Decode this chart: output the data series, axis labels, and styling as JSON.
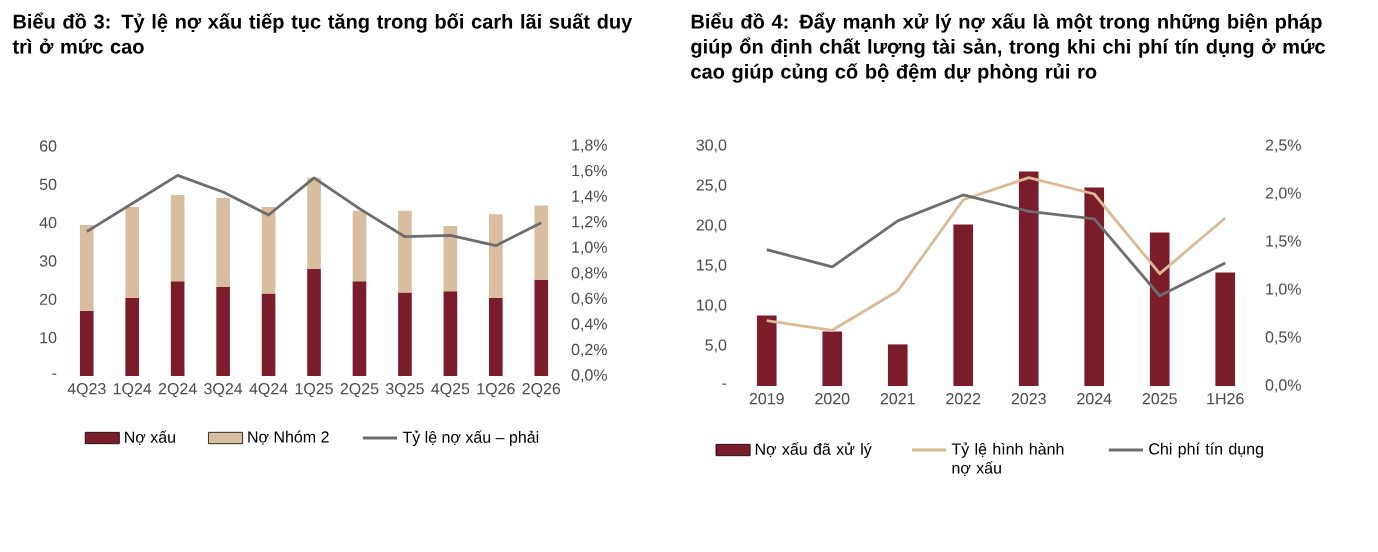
{
  "chart_data": [
    {
      "type": "bar",
      "title": "Biểu đồ 3: Tỷ lệ nợ xấu tiếp tục tăng trong bối carh lãi suất duy trì ở mức cao",
      "stacked": true,
      "legend": "bottom",
      "categories": [
        "4Q23",
        "1Q24",
        "2Q24",
        "3Q24",
        "4Q24",
        "1Q25",
        "2Q25",
        "3Q25",
        "4Q25",
        "1Q26",
        "2Q26"
      ],
      "ylim": [
        0,
        60
      ],
      "yticks": [
        {
          "value": 0,
          "label": "-"
        },
        10,
        20,
        30,
        40,
        50,
        60
      ],
      "y2lim": [
        0,
        1.8
      ],
      "y2ticks": [
        {
          "value": 0,
          "label": "0,0%"
        },
        {
          "value": 0.2,
          "label": "0,2%"
        },
        {
          "value": 0.4,
          "label": "0,4%"
        },
        {
          "value": 0.6,
          "label": "0,6%"
        },
        {
          "value": 0.8,
          "label": "0,8%"
        },
        {
          "value": 1.0,
          "label": "1,0%"
        },
        {
          "value": 1.2,
          "label": "1,2%"
        },
        {
          "value": 1.4,
          "label": "1,4%"
        },
        {
          "value": 1.6,
          "label": "1,6%"
        },
        {
          "value": 1.8,
          "label": "1,8%"
        }
      ],
      "series": [
        {
          "name": "Nợ xấu",
          "color": "#7b1c2a",
          "values": [
            17.0,
            20.4,
            24.7,
            23.2,
            21.5,
            28.0,
            24.7,
            21.8,
            22.1,
            20.4,
            25.1
          ]
        },
        {
          "name": "Nợ Nhóm 2",
          "color": "#d8bd9f",
          "values": [
            22.4,
            23.7,
            22.5,
            23.2,
            22.6,
            23.7,
            18.4,
            21.3,
            17.0,
            21.8,
            19.4
          ]
        },
        {
          "name": "Tỷ lệ nợ xấu – phải",
          "type": "line",
          "axis": "y2",
          "color": "#6d6d6d",
          "values": [
            1.13,
            1.35,
            1.57,
            1.44,
            1.26,
            1.55,
            1.31,
            1.09,
            1.1,
            1.02,
            1.2
          ]
        }
      ]
    },
    {
      "type": "bar",
      "title": "Biểu đồ 4: Đẩy mạnh xử lý nợ xấu là một trong những biện pháp giúp ổn định chất lượng tài sản, trong khi chi phí tín dụng ở mức cao giúp củng cố bộ đệm dự phòng rủi ro",
      "legend": "bottom",
      "categories": [
        "2019",
        "2020",
        "2021",
        "2022",
        "2023",
        "2024",
        "2025",
        "1H26"
      ],
      "ylim": [
        0,
        30
      ],
      "yticks": [
        {
          "value": 0,
          "label": "-"
        },
        {
          "value": 5,
          "label": "5,0"
        },
        {
          "value": 10,
          "label": "10,0"
        },
        {
          "value": 15,
          "label": "15,0"
        },
        {
          "value": 20,
          "label": "20,0"
        },
        {
          "value": 25,
          "label": "25,0"
        },
        {
          "value": 30,
          "label": "30,0"
        }
      ],
      "y2lim": [
        0,
        2.5
      ],
      "y2ticks": [
        {
          "value": 0,
          "label": "0,0%"
        },
        {
          "value": 0.5,
          "label": "0,5%"
        },
        {
          "value": 1.0,
          "label": "1,0%"
        },
        {
          "value": 1.5,
          "label": "1,5%"
        },
        {
          "value": 2.0,
          "label": "2,0%"
        },
        {
          "value": 2.5,
          "label": "2,5%"
        }
      ],
      "series": [
        {
          "name": "Nợ xấu đã xử lý",
          "color": "#7b1c2a",
          "values": [
            8.8,
            6.8,
            5.2,
            20.2,
            26.8,
            24.8,
            19.2,
            14.2
          ]
        },
        {
          "name": "Tỷ lệ hình hành nợ xấu",
          "type": "line",
          "axis": "y2",
          "color": "#dcb995",
          "values": [
            0.68,
            0.58,
            0.99,
            1.94,
            2.17,
            2.0,
            1.17,
            1.75
          ]
        },
        {
          "name": "Chi phí tín dụng",
          "type": "line",
          "axis": "y2",
          "color": "#6d6d6d",
          "values": [
            1.42,
            1.24,
            1.72,
            1.99,
            1.82,
            1.74,
            0.94,
            1.28
          ]
        }
      ]
    }
  ]
}
